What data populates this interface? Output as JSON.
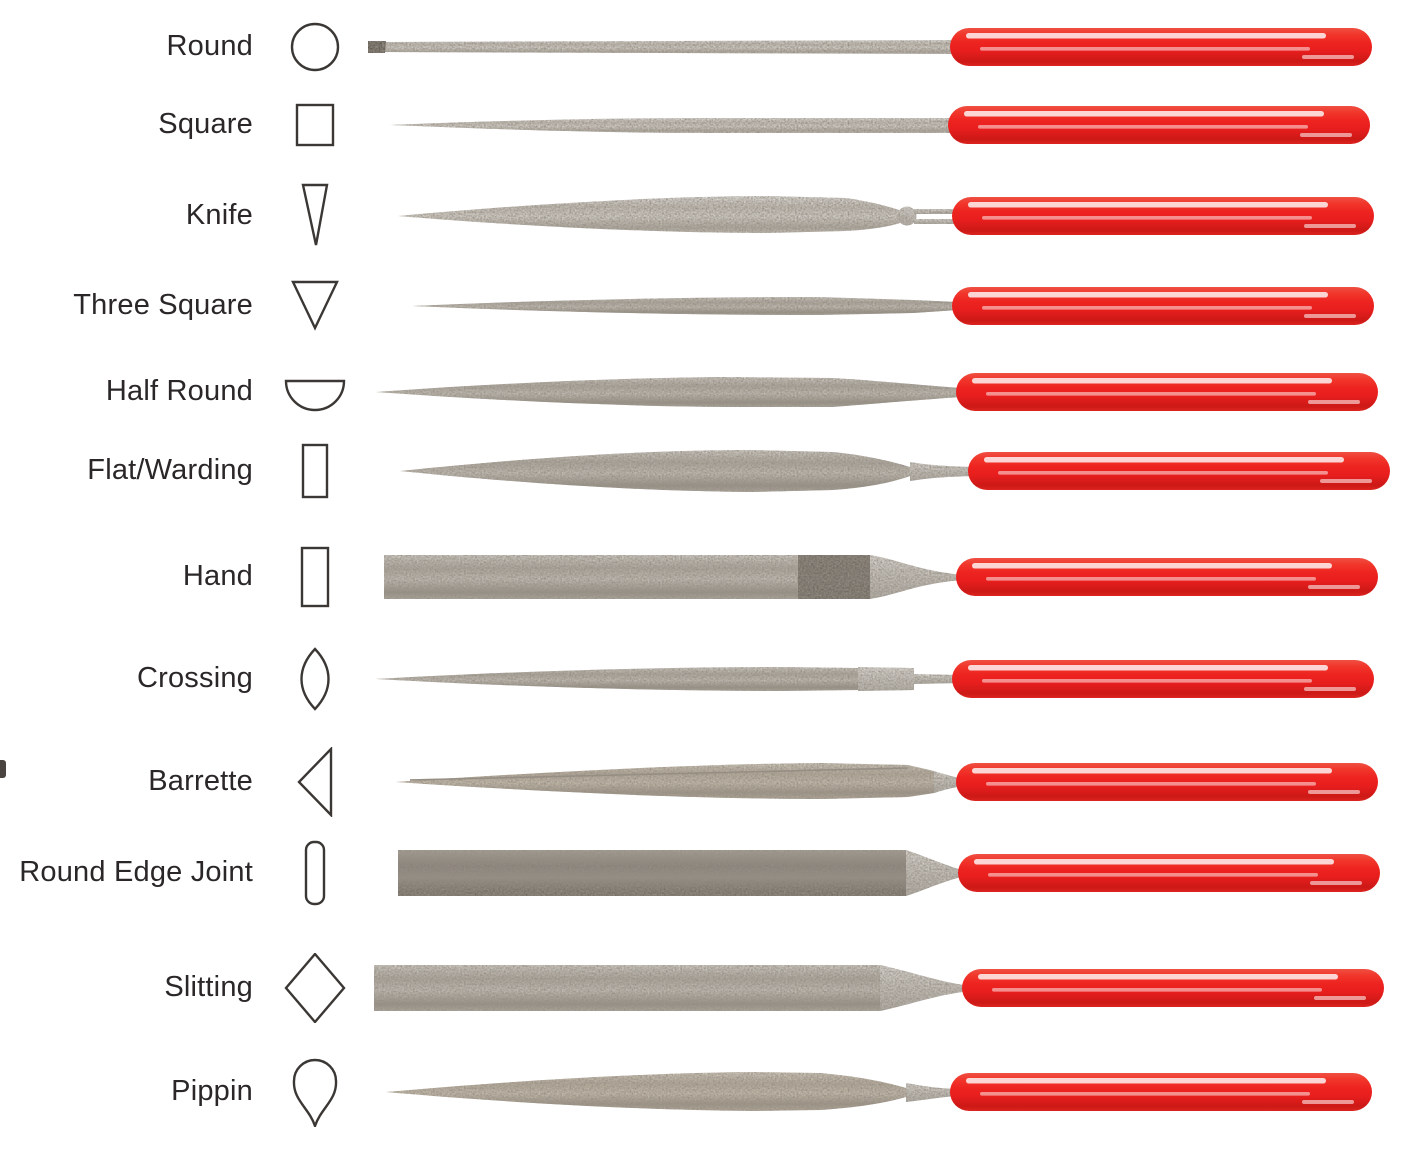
{
  "page": {
    "background": "#ffffff",
    "description_rows": 12
  },
  "rows": [
    {
      "label": "Round",
      "cross_section": "round"
    },
    {
      "label": "Square",
      "cross_section": "square"
    },
    {
      "label": "Knife",
      "cross_section": "knife"
    },
    {
      "label": "Three Square",
      "cross_section": "three-square"
    },
    {
      "label": "Half Round",
      "cross_section": "half-round"
    },
    {
      "label": "Flat/Warding",
      "cross_section": "flat-warding"
    },
    {
      "label": "Hand",
      "cross_section": "hand"
    },
    {
      "label": "Crossing",
      "cross_section": "crossing"
    },
    {
      "label": "Barrette",
      "cross_section": "barrette"
    },
    {
      "label": "Round Edge Joint",
      "cross_section": "round-edge-joint"
    },
    {
      "label": "Slitting",
      "cross_section": "slitting"
    },
    {
      "label": "Pippin",
      "cross_section": "pippin"
    }
  ],
  "colors": {
    "handle_red": "#ee2421",
    "handle_red_dark": "#cc1916",
    "handle_highlight": "#ffffff",
    "metal_light": "#d5d1ca",
    "metal_mid": "#b4aea5",
    "metal_tan": "#bdb2a1",
    "metal_dark": "#837d75",
    "tang_silver": "#cfcbc4",
    "label_text": "#2b2728",
    "outline": "#3b3735"
  }
}
